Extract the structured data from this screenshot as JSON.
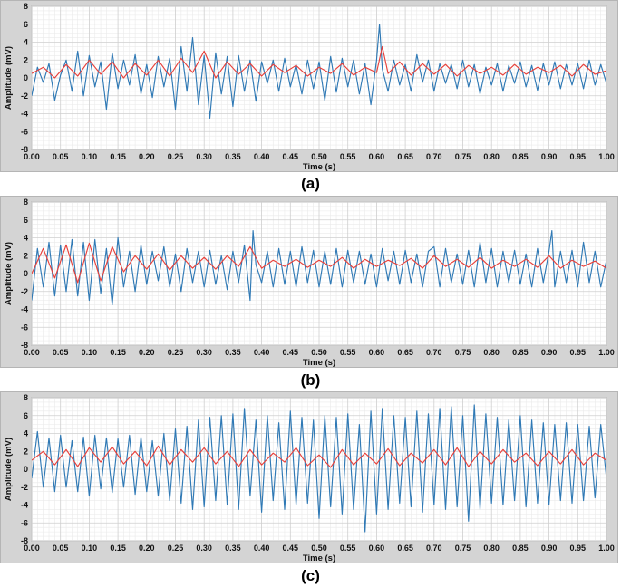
{
  "colors": {
    "series_blue": "#2f79b5",
    "series_red": "#e8403a",
    "panel_bg": "#d4d4d4",
    "plot_bg": "#ffffff",
    "grid_major": "#cfcfcf",
    "grid_minor": "#eaeaea"
  },
  "captions": [
    "(a)",
    "(b)",
    "(c)"
  ],
  "chart_data": [
    {
      "type": "line",
      "xlabel": "Time (s)",
      "ylabel": "Amplitude (mV)",
      "xlim": [
        0,
        1
      ],
      "ylim": [
        -8,
        8
      ],
      "xticks": [
        "0.00",
        "0.05",
        "0.10",
        "0.15",
        "0.20",
        "0.25",
        "0.30",
        "0.35",
        "0.40",
        "0.45",
        "0.50",
        "0.55",
        "0.60",
        "0.65",
        "0.70",
        "0.75",
        "0.80",
        "0.85",
        "0.90",
        "0.95",
        "1.00"
      ],
      "yticks": [
        "-8",
        "-6",
        "-4",
        "-2",
        "0",
        "2",
        "4",
        "6",
        "8"
      ],
      "grid": true,
      "series": [
        {
          "color": "#2f79b5",
          "x": [
            0.0,
            0.01,
            0.02,
            0.03,
            0.04,
            0.05,
            0.06,
            0.07,
            0.08,
            0.09,
            0.1,
            0.11,
            0.12,
            0.13,
            0.14,
            0.15,
            0.16,
            0.17,
            0.18,
            0.19,
            0.2,
            0.21,
            0.22,
            0.23,
            0.24,
            0.25,
            0.26,
            0.27,
            0.28,
            0.29,
            0.3,
            0.31,
            0.32,
            0.33,
            0.34,
            0.35,
            0.36,
            0.37,
            0.38,
            0.39,
            0.4,
            0.41,
            0.42,
            0.43,
            0.44,
            0.45,
            0.46,
            0.47,
            0.48,
            0.49,
            0.5,
            0.51,
            0.52,
            0.53,
            0.54,
            0.55,
            0.56,
            0.57,
            0.58,
            0.59,
            0.6,
            0.605,
            0.61,
            0.62,
            0.63,
            0.64,
            0.65,
            0.66,
            0.67,
            0.68,
            0.69,
            0.7,
            0.71,
            0.72,
            0.73,
            0.74,
            0.75,
            0.76,
            0.77,
            0.78,
            0.79,
            0.8,
            0.81,
            0.82,
            0.83,
            0.84,
            0.85,
            0.86,
            0.87,
            0.88,
            0.89,
            0.9,
            0.91,
            0.92,
            0.93,
            0.94,
            0.95,
            0.96,
            0.97,
            0.98,
            0.99,
            1.0
          ],
          "y": [
            -2.0,
            1.2,
            -0.5,
            1.6,
            -2.5,
            0.3,
            2.0,
            -1.5,
            3.0,
            -2.0,
            2.5,
            -1.0,
            1.8,
            -3.5,
            2.8,
            -1.2,
            2.0,
            -0.8,
            2.6,
            -1.8,
            1.5,
            -2.2,
            2.4,
            -1.0,
            2.2,
            -3.5,
            3.5,
            -1.5,
            4.5,
            -3.0,
            2.5,
            -4.5,
            2.8,
            -1.8,
            2.4,
            -3.2,
            2.5,
            -1.5,
            2.0,
            -2.6,
            1.8,
            -0.6,
            2.0,
            -1.5,
            2.2,
            -1.0,
            1.5,
            -1.8,
            2.0,
            -1.2,
            1.8,
            -2.5,
            2.4,
            -1.6,
            2.2,
            -1.0,
            2.0,
            -1.8,
            1.6,
            -3.0,
            2.0,
            6.0,
            1.0,
            -1.5,
            2.0,
            -0.8,
            1.5,
            -1.5,
            2.6,
            -0.5,
            2.0,
            -1.5,
            1.6,
            -0.6,
            1.5,
            -1.2,
            2.0,
            -1.0,
            1.5,
            -1.8,
            1.2,
            -0.8,
            1.6,
            -1.5,
            1.4,
            -0.6,
            1.8,
            -1.0,
            1.4,
            -1.4,
            1.6,
            -0.8,
            1.8,
            -1.2,
            1.5,
            -0.8,
            1.6,
            -1.2,
            2.0,
            -0.8,
            1.5,
            -0.6
          ],
          "ylim": [
            -8,
            8
          ]
        },
        {
          "color": "#e8403a",
          "x": [
            0.0,
            0.02,
            0.04,
            0.06,
            0.08,
            0.1,
            0.12,
            0.14,
            0.16,
            0.18,
            0.2,
            0.22,
            0.24,
            0.26,
            0.28,
            0.3,
            0.32,
            0.34,
            0.36,
            0.38,
            0.4,
            0.42,
            0.44,
            0.46,
            0.48,
            0.5,
            0.52,
            0.54,
            0.56,
            0.58,
            0.6,
            0.61,
            0.62,
            0.64,
            0.66,
            0.68,
            0.7,
            0.72,
            0.74,
            0.76,
            0.78,
            0.8,
            0.82,
            0.84,
            0.86,
            0.88,
            0.9,
            0.92,
            0.94,
            0.96,
            0.98,
            1.0
          ],
          "y": [
            0.5,
            1.2,
            0.0,
            1.5,
            0.2,
            2.0,
            0.4,
            1.8,
            0.0,
            1.6,
            0.3,
            2.0,
            0.2,
            2.2,
            0.6,
            3.0,
            0.0,
            1.8,
            0.4,
            1.6,
            0.2,
            1.5,
            0.6,
            1.4,
            0.2,
            1.2,
            0.5,
            1.6,
            0.3,
            1.2,
            0.6,
            3.5,
            0.5,
            1.8,
            0.3,
            1.6,
            0.4,
            1.5,
            0.2,
            1.4,
            0.5,
            1.2,
            0.3,
            1.5,
            0.4,
            1.2,
            0.6,
            1.4,
            0.2,
            1.5,
            0.4,
            0.8
          ]
        }
      ]
    },
    {
      "type": "line",
      "xlabel": "Time (s)",
      "ylabel": "Amplitude (mV)",
      "xlim": [
        0,
        1
      ],
      "ylim": [
        -8,
        8
      ],
      "xticks": [
        "0.00",
        "0.05",
        "0.10",
        "0.15",
        "0.20",
        "0.25",
        "0.30",
        "0.35",
        "0.40",
        "0.45",
        "0.50",
        "0.55",
        "0.60",
        "0.65",
        "0.70",
        "0.75",
        "0.80",
        "0.85",
        "0.90",
        "0.95",
        "1.00"
      ],
      "yticks": [
        "-8",
        "-6",
        "-4",
        "-2",
        "0",
        "2",
        "4",
        "6",
        "8"
      ],
      "grid": true,
      "series": [
        {
          "color": "#2f79b5",
          "x": [
            0.0,
            0.01,
            0.02,
            0.03,
            0.04,
            0.05,
            0.06,
            0.07,
            0.08,
            0.09,
            0.1,
            0.11,
            0.12,
            0.13,
            0.14,
            0.15,
            0.16,
            0.17,
            0.18,
            0.19,
            0.2,
            0.21,
            0.22,
            0.23,
            0.24,
            0.25,
            0.26,
            0.27,
            0.28,
            0.29,
            0.3,
            0.31,
            0.32,
            0.33,
            0.34,
            0.35,
            0.36,
            0.37,
            0.38,
            0.385,
            0.39,
            0.4,
            0.41,
            0.42,
            0.43,
            0.44,
            0.45,
            0.46,
            0.47,
            0.48,
            0.49,
            0.5,
            0.51,
            0.52,
            0.53,
            0.54,
            0.55,
            0.56,
            0.57,
            0.58,
            0.59,
            0.6,
            0.61,
            0.62,
            0.63,
            0.64,
            0.65,
            0.66,
            0.67,
            0.68,
            0.69,
            0.7,
            0.71,
            0.72,
            0.73,
            0.74,
            0.75,
            0.76,
            0.77,
            0.78,
            0.79,
            0.8,
            0.81,
            0.82,
            0.83,
            0.84,
            0.85,
            0.86,
            0.87,
            0.88,
            0.89,
            0.9,
            0.905,
            0.91,
            0.92,
            0.93,
            0.94,
            0.95,
            0.96,
            0.97,
            0.98,
            0.99,
            1.0
          ],
          "y": [
            -3.0,
            2.8,
            -1.5,
            3.5,
            -2.5,
            3.2,
            -2.0,
            3.8,
            -2.5,
            3.5,
            -3.0,
            3.8,
            -2.2,
            2.8,
            -3.5,
            4.0,
            -1.5,
            2.5,
            -2.0,
            3.2,
            -1.2,
            2.5,
            -0.8,
            3.0,
            -1.5,
            2.2,
            -2.0,
            2.8,
            -1.0,
            2.5,
            -1.5,
            2.6,
            -1.2,
            2.0,
            -1.8,
            2.5,
            -1.0,
            3.2,
            -3.0,
            4.8,
            1.0,
            -1.0,
            2.5,
            -1.5,
            2.8,
            -1.2,
            2.5,
            -1.5,
            3.0,
            -1.0,
            2.6,
            -1.5,
            2.5,
            -1.2,
            2.8,
            -1.5,
            2.6,
            -1.0,
            2.5,
            -1.2,
            2.2,
            -1.5,
            2.8,
            -0.8,
            2.5,
            -1.2,
            2.6,
            -1.0,
            2.2,
            -1.5,
            2.5,
            3.0,
            -1.5,
            2.8,
            -1.0,
            2.2,
            -1.2,
            2.6,
            -1.5,
            3.5,
            -1.0,
            2.8,
            -1.5,
            2.5,
            -1.0,
            2.6,
            -1.2,
            2.2,
            -1.5,
            2.8,
            -1.0,
            2.5,
            4.8,
            -1.5,
            2.5,
            -1.0,
            2.6,
            -1.5,
            3.5,
            -1.0,
            2.5,
            -1.5,
            1.5
          ],
          "ylim": [
            -8,
            8
          ]
        },
        {
          "color": "#e8403a",
          "x": [
            0.0,
            0.02,
            0.04,
            0.06,
            0.08,
            0.1,
            0.12,
            0.14,
            0.16,
            0.18,
            0.2,
            0.22,
            0.24,
            0.26,
            0.28,
            0.3,
            0.32,
            0.34,
            0.36,
            0.38,
            0.4,
            0.42,
            0.44,
            0.46,
            0.48,
            0.5,
            0.52,
            0.54,
            0.56,
            0.58,
            0.6,
            0.62,
            0.64,
            0.66,
            0.68,
            0.7,
            0.72,
            0.74,
            0.76,
            0.78,
            0.8,
            0.82,
            0.84,
            0.86,
            0.88,
            0.9,
            0.92,
            0.94,
            0.96,
            0.98,
            1.0
          ],
          "y": [
            0.0,
            2.8,
            -0.5,
            3.2,
            -1.0,
            3.4,
            -0.8,
            3.0,
            0.2,
            2.0,
            0.5,
            2.2,
            0.4,
            2.0,
            0.6,
            1.8,
            0.5,
            2.0,
            0.8,
            3.0,
            0.6,
            1.5,
            0.8,
            1.6,
            0.7,
            1.5,
            0.8,
            1.8,
            0.6,
            1.6,
            0.8,
            1.5,
            0.9,
            1.7,
            0.6,
            2.0,
            0.8,
            1.6,
            0.7,
            1.8,
            0.6,
            1.5,
            0.8,
            1.6,
            0.7,
            2.0,
            0.6,
            1.5,
            0.8,
            1.4,
            0.6
          ]
        }
      ]
    },
    {
      "type": "line",
      "xlabel": "Time (s)",
      "ylabel": "Amplitude (mV)",
      "xlim": [
        0,
        1
      ],
      "ylim": [
        -8,
        8
      ],
      "xticks": [
        "0.00",
        "0.05",
        "0.10",
        "0.15",
        "0.20",
        "0.25",
        "0.30",
        "0.35",
        "0.40",
        "0.45",
        "0.50",
        "0.55",
        "0.60",
        "0.65",
        "0.70",
        "0.75",
        "0.80",
        "0.85",
        "0.90",
        "0.95",
        "1.00"
      ],
      "yticks": [
        "-8",
        "-6",
        "-4",
        "-2",
        "0",
        "2",
        "4",
        "6",
        "8"
      ],
      "grid": true,
      "series": [
        {
          "color": "#2f79b5",
          "x": [
            0.0,
            0.01,
            0.02,
            0.03,
            0.04,
            0.05,
            0.06,
            0.07,
            0.08,
            0.09,
            0.1,
            0.11,
            0.12,
            0.13,
            0.14,
            0.15,
            0.16,
            0.17,
            0.18,
            0.19,
            0.2,
            0.21,
            0.22,
            0.23,
            0.24,
            0.25,
            0.26,
            0.27,
            0.28,
            0.29,
            0.3,
            0.31,
            0.32,
            0.33,
            0.34,
            0.35,
            0.36,
            0.37,
            0.38,
            0.39,
            0.4,
            0.41,
            0.42,
            0.43,
            0.44,
            0.45,
            0.46,
            0.47,
            0.48,
            0.49,
            0.5,
            0.51,
            0.52,
            0.53,
            0.54,
            0.55,
            0.56,
            0.57,
            0.58,
            0.59,
            0.6,
            0.61,
            0.62,
            0.63,
            0.64,
            0.65,
            0.66,
            0.67,
            0.68,
            0.69,
            0.7,
            0.71,
            0.72,
            0.73,
            0.74,
            0.75,
            0.76,
            0.77,
            0.78,
            0.79,
            0.8,
            0.81,
            0.82,
            0.83,
            0.84,
            0.85,
            0.86,
            0.87,
            0.88,
            0.89,
            0.9,
            0.91,
            0.92,
            0.93,
            0.94,
            0.95,
            0.96,
            0.97,
            0.98,
            0.99,
            1.0
          ],
          "y": [
            -1.0,
            4.2,
            -2.0,
            3.5,
            -2.5,
            3.8,
            -2.0,
            3.2,
            -2.5,
            3.6,
            -3.0,
            3.8,
            -2.2,
            3.5,
            -2.6,
            3.4,
            -2.0,
            3.8,
            -2.8,
            3.6,
            -2.5,
            3.2,
            -3.0,
            4.0,
            -3.5,
            4.5,
            -3.8,
            4.8,
            -4.5,
            5.5,
            -4.2,
            5.8,
            -3.5,
            6.0,
            -4.0,
            6.2,
            -4.5,
            6.8,
            -3.0,
            5.5,
            -4.8,
            6.0,
            -3.5,
            5.2,
            -4.5,
            6.5,
            -4.0,
            5.8,
            -3.8,
            5.5,
            -5.5,
            6.0,
            -4.2,
            5.8,
            -5.0,
            6.2,
            -4.5,
            5.0,
            -7.0,
            6.5,
            -5.0,
            6.8,
            -4.5,
            6.0,
            -3.8,
            5.8,
            -4.2,
            6.5,
            -4.8,
            6.2,
            -4.0,
            6.8,
            -4.5,
            7.0,
            -4.2,
            6.0,
            -5.8,
            7.2,
            -4.5,
            6.2,
            -3.8,
            5.8,
            -4.0,
            5.5,
            -3.5,
            6.0,
            -4.2,
            5.5,
            -3.8,
            5.2,
            -4.0,
            5.0,
            -3.5,
            5.2,
            -3.8,
            5.0,
            -3.5,
            4.8,
            -3.2,
            5.0,
            -1.0
          ],
          "ylim": [
            -8,
            8
          ]
        },
        {
          "color": "#e8403a",
          "x": [
            0.0,
            0.02,
            0.04,
            0.06,
            0.08,
            0.1,
            0.12,
            0.14,
            0.16,
            0.18,
            0.2,
            0.22,
            0.24,
            0.26,
            0.28,
            0.3,
            0.32,
            0.34,
            0.36,
            0.38,
            0.4,
            0.42,
            0.44,
            0.46,
            0.48,
            0.5,
            0.52,
            0.54,
            0.56,
            0.58,
            0.6,
            0.62,
            0.64,
            0.66,
            0.68,
            0.7,
            0.72,
            0.74,
            0.76,
            0.78,
            0.8,
            0.82,
            0.84,
            0.86,
            0.88,
            0.9,
            0.92,
            0.94,
            0.96,
            0.98,
            1.0
          ],
          "y": [
            1.0,
            2.0,
            0.5,
            2.2,
            0.3,
            2.4,
            0.8,
            2.5,
            0.6,
            2.0,
            0.4,
            2.6,
            0.5,
            2.2,
            0.8,
            2.4,
            0.6,
            2.0,
            0.3,
            2.2,
            0.5,
            1.8,
            0.8,
            2.4,
            0.4,
            1.6,
            0.2,
            2.2,
            0.5,
            1.8,
            0.6,
            2.3,
            0.4,
            1.8,
            0.7,
            2.2,
            0.5,
            2.4,
            0.3,
            2.0,
            0.6,
            2.2,
            0.8,
            1.8,
            0.4,
            2.0,
            0.6,
            2.2,
            0.5,
            1.8,
            1.0
          ]
        }
      ]
    }
  ]
}
